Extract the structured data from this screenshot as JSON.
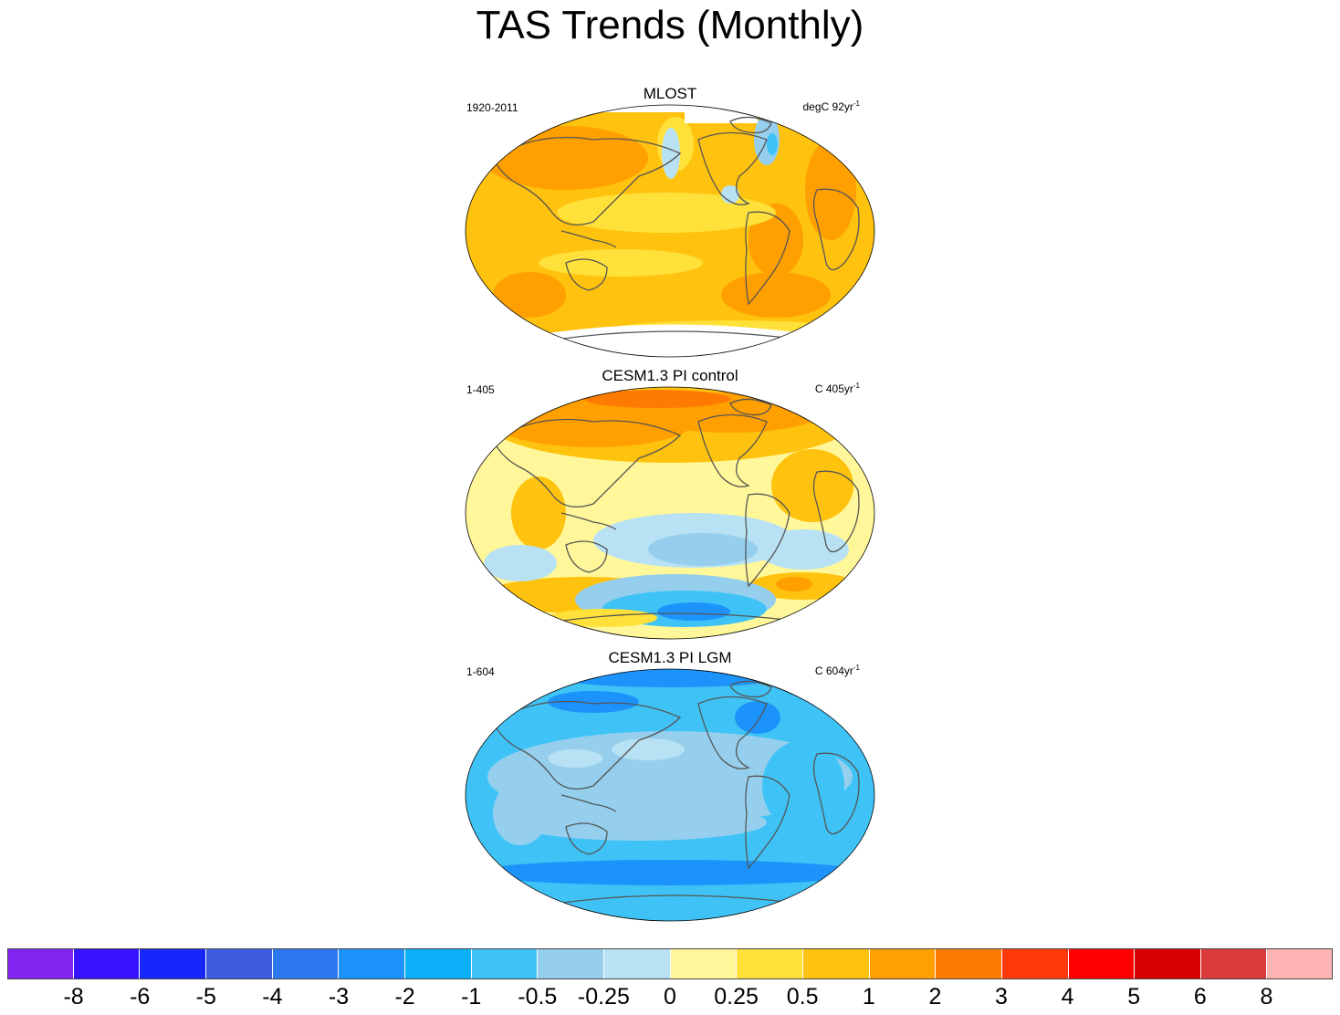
{
  "title": "TAS Trends (Monthly)",
  "panels": [
    {
      "name": "MLOST",
      "period": "1920-2011",
      "units_base": "degC 92yr",
      "units_exp": "-1",
      "pattern": "warm-uniform",
      "dominant_color": "#ffc20e"
    },
    {
      "name": "CESM1.3 PI control",
      "period": "1-405",
      "units_base": "C 405yr",
      "units_exp": "-1",
      "pattern": "warm-north-cool-south",
      "dominant_color": "#fff799"
    },
    {
      "name": "CESM1.3 PI LGM",
      "period": "1-604",
      "units_base": "C 604yr",
      "units_exp": "-1",
      "pattern": "cool-uniform",
      "dominant_color": "#3fc3f6"
    }
  ],
  "colorbar": {
    "colors": [
      "#8124f0",
      "#3712ff",
      "#1726fa",
      "#3e5ce0",
      "#2d77ef",
      "#1c93fb",
      "#0db1fa",
      "#3fc3f6",
      "#95cfed",
      "#b8e2f4",
      "#fff799",
      "#ffe139",
      "#ffc20e",
      "#ff9f00",
      "#ff7a00",
      "#ff3a08",
      "#ff0000",
      "#d70000",
      "#da3b3b",
      "#ffb4b4"
    ],
    "labels": [
      "-8",
      "-6",
      "-5",
      "-4",
      "-3",
      "-2",
      "-1",
      "-0.5",
      "-0.25",
      "0",
      "0.25",
      "0.5",
      "1",
      "2",
      "3",
      "4",
      "5",
      "6",
      "8"
    ]
  }
}
